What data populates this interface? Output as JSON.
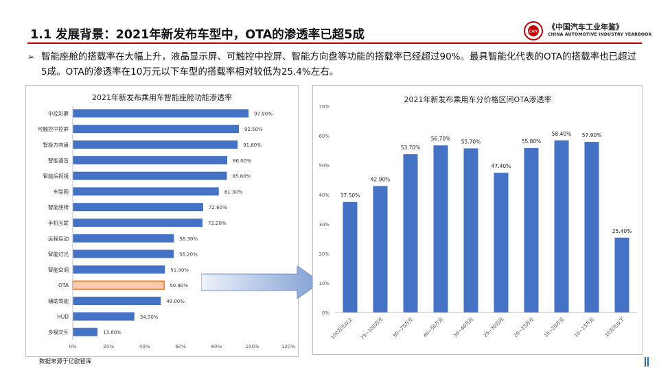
{
  "slide": {
    "title": "1.1 发展背景：2021年新发布车型中，OTA的渗透率已超5成",
    "bullet_mark": "➢",
    "bullet_text": "智能座舱的搭载率在大幅上升，液晶显示屏、可触控中控屏、智能方向盘等功能的搭载率已经超过90%。最具智能化代表的OTA的搭载率也已超过5成。OTA的渗透率在10万元以下车型的搭载率相对较低为25.4%左右。",
    "source": "数据来源于亿欧智库"
  },
  "logo": {
    "cn": "《中国汽车工业年鉴》",
    "en": "CHINA AUTOMOTIVE INDUSTRY YEARBOOK",
    "badge_text": "CAIY"
  },
  "colors": {
    "bar": "#4472c4",
    "highlight_fill": "#f8cbad",
    "highlight_stroke": "#ed7d31",
    "title_rule": "#c00000",
    "arrow_start": "#eef2fa",
    "arrow_end": "#7f9fd3"
  },
  "chart_data": [
    {
      "type": "bar",
      "orientation": "horizontal",
      "title": "2021年新发布乘用车智能座舱功能渗透率",
      "categories": [
        "中控彩屏",
        "可触控中控屏",
        "智能方向盘",
        "智能语音",
        "智能后视镜",
        "车联网",
        "智能座椅",
        "手机互联",
        "远程启动",
        "智能灯光",
        "智能空调",
        "OTA",
        "辅助驾驶",
        "HUD",
        "多模交互"
      ],
      "values": [
        97.9,
        92.5,
        91.8,
        86.0,
        85.8,
        81.3,
        72.6,
        72.2,
        56.3,
        56.2,
        51.3,
        50.9,
        49.0,
        34.3,
        13.8
      ],
      "value_labels": [
        "97.90%",
        "92.50%",
        "91.80%",
        "86.00%",
        "85.80%",
        "81.30%",
        "72.60%",
        "72.20%",
        "56.30%",
        "56.20%",
        "51.30%",
        "50.90%",
        "49.00%",
        "34.30%",
        "13.80%"
      ],
      "highlight": "OTA",
      "xlim": [
        0,
        120
      ],
      "xticks": [
        "0%",
        "20%",
        "40%",
        "60%",
        "80%",
        "100%",
        "120%"
      ],
      "grid": false,
      "legend": "none"
    },
    {
      "type": "bar",
      "orientation": "vertical",
      "title": "2021年新发布乘用车分价格区间OTA渗透率",
      "categories": [
        "100万元以上",
        "75~100万元",
        "50~75万元",
        "40~50万元",
        "30~40万元",
        "25~30万元",
        "20~25万元",
        "15~20万元",
        "10~15万元",
        "10万元以下"
      ],
      "values": [
        37.5,
        42.9,
        53.7,
        56.7,
        55.7,
        47.4,
        55.8,
        58.4,
        57.9,
        25.4
      ],
      "value_labels": [
        "37.50%",
        "42.90%",
        "53.70%",
        "56.70%",
        "55.70%",
        "47.40%",
        "55.80%",
        "58.40%",
        "57.90%",
        "25.40%"
      ],
      "ylim": [
        0,
        70
      ],
      "yticks": [
        "0%",
        "10%",
        "20%",
        "30%",
        "40%",
        "50%",
        "60%",
        "70%"
      ],
      "grid": false,
      "legend": "none"
    }
  ]
}
